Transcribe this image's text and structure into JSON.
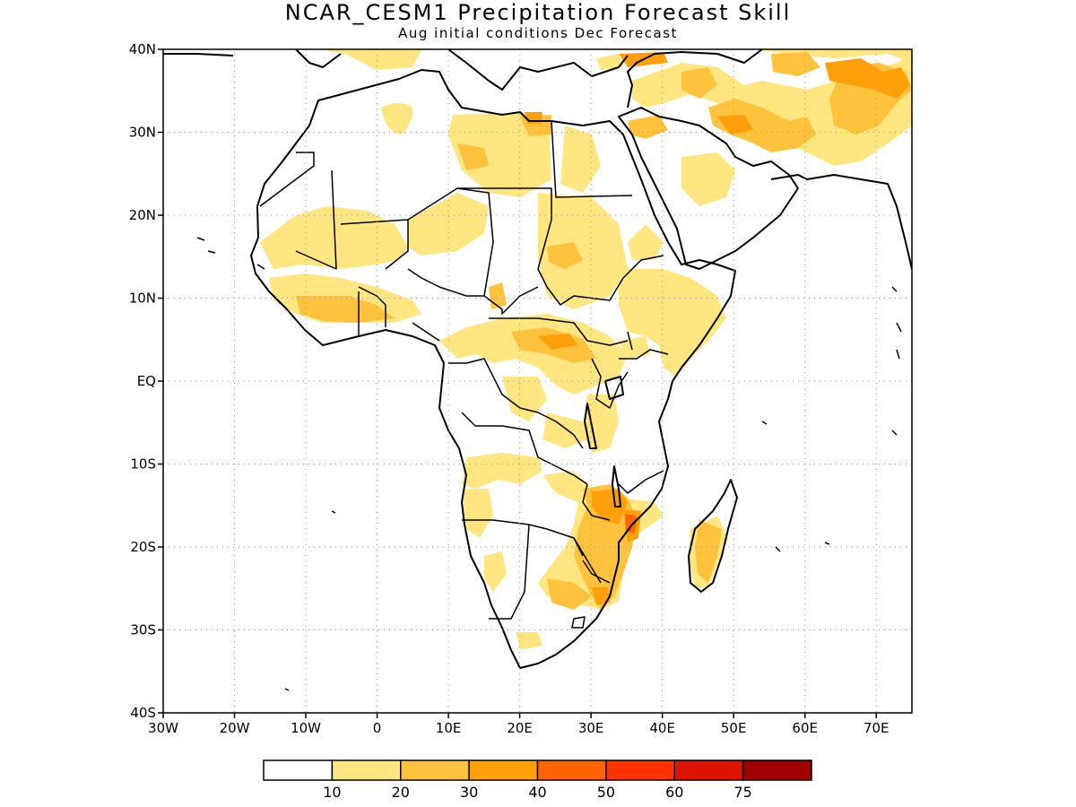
{
  "title": "NCAR_CESM1 Precipitation Forecast Skill",
  "subtitle": "Aug initial conditions  Dec Forecast",
  "map": {
    "lon_range": [
      -30,
      75
    ],
    "lat_range": [
      -40,
      40
    ],
    "lat_ticks": [
      {
        "lat": 40,
        "label": "40N"
      },
      {
        "lat": 30,
        "label": "30N"
      },
      {
        "lat": 20,
        "label": "20N"
      },
      {
        "lat": 10,
        "label": "10N"
      },
      {
        "lat": 0,
        "label": "EQ"
      },
      {
        "lat": -10,
        "label": "10S"
      },
      {
        "lat": -20,
        "label": "20S"
      },
      {
        "lat": -30,
        "label": "30S"
      },
      {
        "lat": -40,
        "label": "40S"
      }
    ],
    "lon_ticks": [
      {
        "lon": -30,
        "label": "30W"
      },
      {
        "lon": -20,
        "label": "20W"
      },
      {
        "lon": -10,
        "label": "10W"
      },
      {
        "lon": 0,
        "label": "0"
      },
      {
        "lon": 10,
        "label": "10E"
      },
      {
        "lon": 20,
        "label": "20E"
      },
      {
        "lon": 30,
        "label": "30E"
      },
      {
        "lon": 40,
        "label": "40E"
      },
      {
        "lon": 50,
        "label": "50E"
      },
      {
        "lon": 60,
        "label": "60E"
      },
      {
        "lon": 70,
        "label": "70E"
      }
    ],
    "grid": "dotted"
  },
  "colorbar": {
    "colors": [
      "#ffffff",
      "#ffe680",
      "#ffc23c",
      "#ffa00a",
      "#ff6400",
      "#ff3200",
      "#dc1400",
      "#a00000"
    ],
    "labels": [
      "10",
      "20",
      "30",
      "40",
      "50",
      "60",
      "75"
    ]
  }
}
